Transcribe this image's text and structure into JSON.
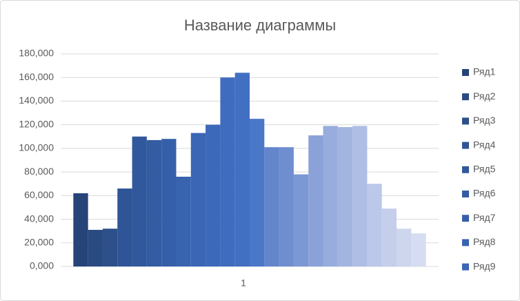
{
  "chart_data": {
    "type": "bar",
    "title": "Название диаграммы",
    "categories": [
      "1"
    ],
    "ylim": [
      0,
      180
    ],
    "yticks": [
      {
        "value": 0,
        "label": "0,000"
      },
      {
        "value": 20,
        "label": "20,000"
      },
      {
        "value": 40,
        "label": "40,000"
      },
      {
        "value": 60,
        "label": "60,000"
      },
      {
        "value": 80,
        "label": "80,000"
      },
      {
        "value": 100,
        "label": "100,000"
      },
      {
        "value": 120,
        "label": "120,000"
      },
      {
        "value": 140,
        "label": "140,000"
      },
      {
        "value": 160,
        "label": "160,000"
      },
      {
        "value": 180,
        "label": "180,000"
      }
    ],
    "grid": true,
    "legend": "right",
    "series": [
      {
        "name": "Ряд1",
        "color": "#264478",
        "values": [
          62
        ]
      },
      {
        "name": "Ряд2",
        "color": "#2a4a82",
        "values": [
          31
        ]
      },
      {
        "name": "Ряд3",
        "color": "#2d4f8a",
        "values": [
          32
        ]
      },
      {
        "name": "Ряд4",
        "color": "#2f5597",
        "values": [
          66
        ]
      },
      {
        "name": "Ряд5",
        "color": "#31589c",
        "values": [
          110
        ]
      },
      {
        "name": "Ряд6",
        "color": "#335ca3",
        "values": [
          107
        ]
      },
      {
        "name": "Ряд7",
        "color": "#365fa9",
        "values": [
          108
        ]
      },
      {
        "name": "Ряд8",
        "color": "#3863af",
        "values": [
          76
        ]
      },
      {
        "name": "Ряд9",
        "color": "#3a66b5",
        "values": [
          113
        ]
      },
      {
        "color": "#3c69ba",
        "values": [
          120
        ]
      },
      {
        "color": "#3f6cbf",
        "values": [
          160
        ]
      },
      {
        "color": "#4170c3",
        "values": [
          164
        ]
      },
      {
        "color": "#4a77c7",
        "values": [
          125
        ]
      },
      {
        "color": "#6385cc",
        "values": [
          101
        ]
      },
      {
        "color": "#6f8ed0",
        "values": [
          101
        ]
      },
      {
        "color": "#7c98d4",
        "values": [
          78
        ]
      },
      {
        "color": "#8aa2d8",
        "values": [
          111
        ]
      },
      {
        "color": "#98adde",
        "values": [
          119
        ]
      },
      {
        "color": "#a2b4e0",
        "values": [
          118
        ]
      },
      {
        "color": "#aebee4",
        "values": [
          119
        ]
      },
      {
        "color": "#bcc8e9",
        "values": [
          70
        ]
      },
      {
        "color": "#c5cfeb",
        "values": [
          49
        ]
      },
      {
        "color": "#ced6ee",
        "values": [
          32
        ]
      },
      {
        "color": "#d6dcf1",
        "values": [
          28
        ]
      }
    ]
  }
}
